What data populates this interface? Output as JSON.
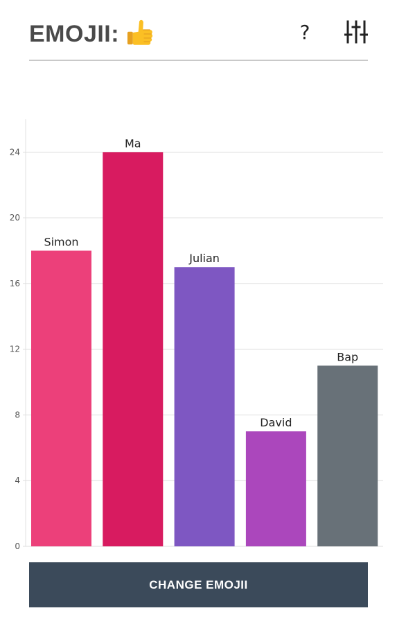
{
  "header": {
    "title": "EMOJII:",
    "emoji_icon": "thumbs-up-icon",
    "help_label": "?",
    "settings_icon": "sliders-icon"
  },
  "chart_data": {
    "type": "bar",
    "categories": [
      "Simon",
      "Ma",
      "Julian",
      "David",
      "Bap"
    ],
    "values": [
      18,
      24,
      17,
      7,
      11
    ],
    "colors": [
      "#ec407a",
      "#d81b60",
      "#7e57c2",
      "#ab47bc",
      "#687178"
    ],
    "ylim": [
      0,
      26
    ],
    "yticks": [
      0,
      4,
      8,
      12,
      16,
      20,
      24
    ],
    "grid": true,
    "legend": "none",
    "title": "",
    "xlabel": "",
    "ylabel": ""
  },
  "footer": {
    "change_button_label": "CHANGE EMOJII"
  }
}
